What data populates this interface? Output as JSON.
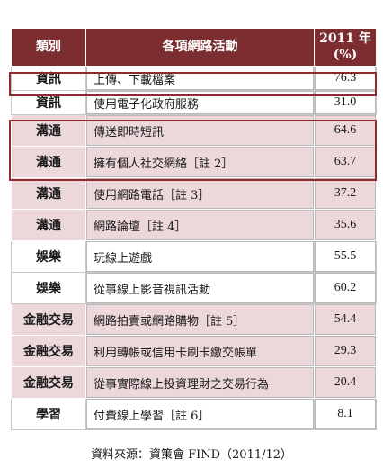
{
  "header": {
    "category": "類別",
    "activity": "各項網路活動",
    "year": "2011 年",
    "unit": "(%)"
  },
  "rows": [
    {
      "category": "資訊",
      "activity": "上傳、下載檔案",
      "value": "76.3"
    },
    {
      "category": "資訊",
      "activity": "使用電子化政府服務",
      "value": "31.0"
    },
    {
      "category": "溝通",
      "activity": "傳送即時短訊",
      "value": "64.6"
    },
    {
      "category": "溝通",
      "activity": "擁有個人社交網絡［註 2］",
      "value": "63.7"
    },
    {
      "category": "溝通",
      "activity": "使用網路電話［註 3］",
      "value": "37.2"
    },
    {
      "category": "溝通",
      "activity": "網路論壇［註 4］",
      "value": "35.6"
    },
    {
      "category": "娛樂",
      "activity": "玩線上遊戲",
      "value": "55.5"
    },
    {
      "category": "娛樂",
      "activity": "從事線上影音視訊活動",
      "value": "60.2"
    },
    {
      "category": "金融交易",
      "activity": "網路拍賣或網路購物［註 5］",
      "value": "54.4"
    },
    {
      "category": "金融交易",
      "activity": "利用轉帳或信用卡刷卡繳交帳單",
      "value": "29.3"
    },
    {
      "category": "金融交易",
      "activity": "從事實際線上投資理財之交易行為",
      "value": "20.4"
    },
    {
      "category": "學習",
      "activity": "付費線上學習［註 6］",
      "value": "8.1"
    }
  ],
  "source": "資料來源：資策會 FIND（2011/12）",
  "colors": {
    "header_bg": "#7b2d2f",
    "pink_row": "#ecd7da",
    "highlight_border": "#8f2a2d"
  }
}
